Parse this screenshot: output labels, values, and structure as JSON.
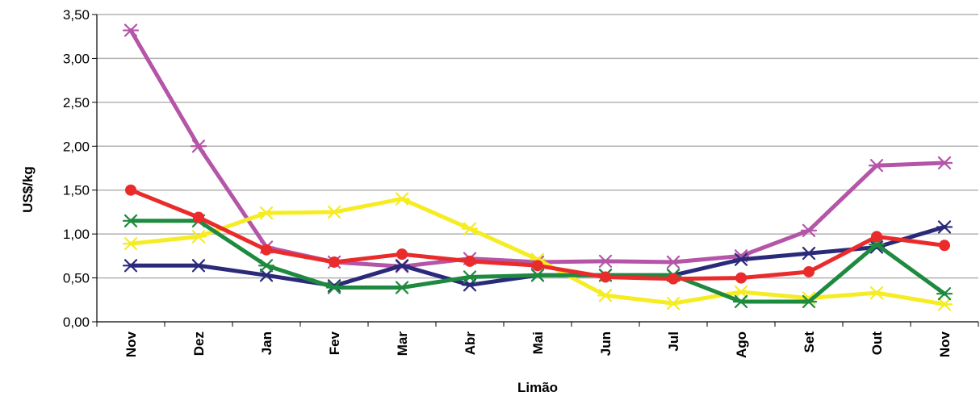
{
  "chart_data": {
    "type": "line",
    "title": "",
    "xlabel": "Limão",
    "ylabel": "US$/kg",
    "ylim": [
      0,
      3.5
    ],
    "yticks": [
      "0,00",
      "0,50",
      "1,00",
      "1,50",
      "2,00",
      "2,50",
      "3,00",
      "3,50"
    ],
    "categories": [
      "Nov",
      "Dez",
      "Jan",
      "Fev",
      "Mar",
      "Abr",
      "Mai",
      "Jun",
      "Jul",
      "Ago",
      "Set",
      "Out",
      "Nov"
    ],
    "grid": true,
    "legend": "none",
    "series": [
      {
        "color": "#b455a8",
        "marker": "star",
        "values": [
          3.32,
          2.0,
          0.85,
          0.68,
          0.63,
          0.72,
          0.68,
          0.69,
          0.68,
          0.75,
          1.04,
          1.78,
          1.81
        ]
      },
      {
        "color": "#2b2a7a",
        "marker": "star",
        "values": [
          0.64,
          0.64,
          0.53,
          0.41,
          0.64,
          0.42,
          0.53,
          0.53,
          0.53,
          0.71,
          0.78,
          0.85,
          1.08
        ]
      },
      {
        "color": "#f5ec22",
        "marker": "star",
        "values": [
          0.89,
          0.97,
          1.24,
          1.25,
          1.4,
          1.06,
          0.71,
          0.3,
          0.21,
          0.34,
          0.27,
          0.33,
          0.2
        ]
      },
      {
        "color": "#1e8a3f",
        "marker": "star",
        "values": [
          1.15,
          1.15,
          0.64,
          0.39,
          0.39,
          0.51,
          0.53,
          0.53,
          0.53,
          0.23,
          0.23,
          0.88,
          0.32
        ]
      },
      {
        "color": "#ea2b2b",
        "marker": "circle",
        "values": [
          1.5,
          1.19,
          0.82,
          0.68,
          0.77,
          0.69,
          0.64,
          0.51,
          0.49,
          0.5,
          0.57,
          0.97,
          0.87
        ]
      }
    ]
  }
}
